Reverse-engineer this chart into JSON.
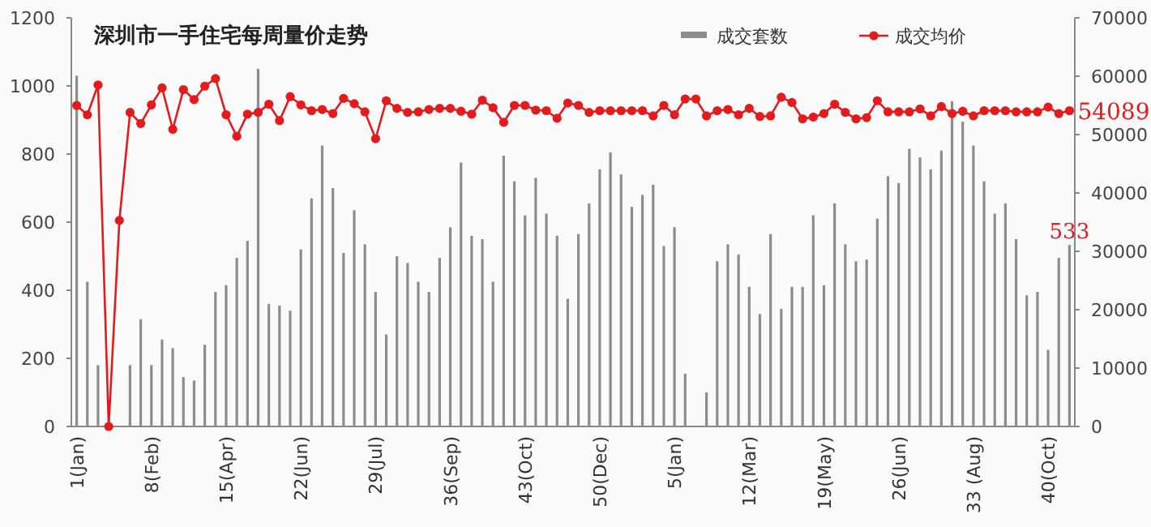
{
  "chart_data": {
    "type": "bar",
    "title": "深圳市一手住宅每周量价走势",
    "categories": [
      "1(Jan)",
      null,
      null,
      null,
      null,
      null,
      null,
      "8(Feb)",
      null,
      null,
      null,
      null,
      null,
      null,
      "15(Apr)",
      null,
      null,
      null,
      null,
      null,
      null,
      "22(Jun)",
      null,
      null,
      null,
      null,
      null,
      null,
      "29(Jul)",
      null,
      null,
      null,
      null,
      null,
      null,
      "36(Sep)",
      null,
      null,
      null,
      null,
      null,
      null,
      "43(Oct)",
      null,
      null,
      null,
      null,
      null,
      null,
      "50(Dec)",
      null,
      null,
      null,
      null,
      null,
      null,
      "5(Jan)",
      null,
      null,
      null,
      null,
      null,
      null,
      "12(Mar)",
      null,
      null,
      null,
      null,
      null,
      null,
      "19(May)",
      null,
      null,
      null,
      null,
      null,
      null,
      "26(Jun)",
      null,
      null,
      null,
      null,
      null,
      null,
      "33 (Aug)",
      null,
      null,
      null,
      null,
      null,
      null,
      "40(Oct)",
      null,
      null
    ],
    "series": [
      {
        "name": "成交套数",
        "color": "#8c8c8c",
        "values": [
          1030,
          425,
          180,
          0,
          0,
          180,
          315,
          180,
          255,
          230,
          145,
          135,
          240,
          395,
          415,
          495,
          545,
          1050,
          360,
          355,
          340,
          520,
          670,
          825,
          700,
          510,
          635,
          535,
          395,
          270,
          500,
          480,
          425,
          395,
          495,
          585,
          775,
          560,
          550,
          425,
          795,
          720,
          620,
          730,
          625,
          560,
          375,
          565,
          655,
          755,
          805,
          740,
          645,
          680,
          710,
          530,
          585,
          155,
          0,
          100,
          485,
          535,
          505,
          410,
          330,
          565,
          345,
          410,
          410,
          620,
          415,
          655,
          535,
          485,
          490,
          610,
          735,
          715,
          815,
          790,
          755,
          810,
          955,
          895,
          825,
          720,
          625,
          655,
          550,
          385,
          395,
          225,
          495,
          533
        ],
        "value_labels": [
          null,
          null,
          null,
          null,
          null,
          null,
          null,
          null,
          null,
          null,
          null,
          null,
          null,
          null,
          null,
          null,
          null,
          null,
          null,
          null,
          null,
          null,
          null,
          null,
          null,
          null,
          null,
          null,
          null,
          null,
          null,
          null,
          null,
          null,
          null,
          null,
          null,
          null,
          null,
          null,
          null,
          null,
          null,
          null,
          null,
          null,
          null,
          null,
          null,
          null,
          null,
          null,
          null,
          null,
          null,
          null,
          null,
          null,
          null,
          null,
          null,
          null,
          null,
          null,
          null,
          null,
          null,
          null,
          null,
          null,
          null,
          null,
          null,
          null,
          null,
          null,
          null,
          null,
          null,
          null,
          null,
          null,
          null,
          null,
          null,
          null,
          null,
          null,
          null,
          null,
          null,
          null,
          null,
          "533"
        ]
      },
      {
        "name": "成交均价",
        "type": "line",
        "axis": "y2",
        "marker": "circle",
        "color": "#e41a1c",
        "values": [
          55000,
          53400,
          58500,
          0,
          35300,
          53800,
          51900,
          55100,
          58000,
          50900,
          57700,
          56000,
          58300,
          59600,
          53400,
          49700,
          53500,
          53800,
          55200,
          52400,
          56500,
          55100,
          54100,
          54300,
          53600,
          56200,
          55300,
          53900,
          49300,
          55800,
          54500,
          53800,
          53900,
          54300,
          54500,
          54500,
          54000,
          53500,
          55900,
          54600,
          52100,
          55000,
          55000,
          54200,
          54100,
          52800,
          55400,
          55000,
          53800,
          54100,
          54100,
          54100,
          54100,
          54100,
          53200,
          55000,
          53400,
          56100,
          56100,
          53200,
          54100,
          54300,
          53400,
          54500,
          53100,
          53200,
          56400,
          55500,
          52700,
          53000,
          53600,
          55200,
          53800,
          52700,
          52900,
          55800,
          53900,
          53900,
          53900,
          54400,
          53200,
          54800,
          53600,
          54000,
          53200,
          54100,
          54100,
          54100,
          53900,
          53900,
          53900,
          54700,
          53600,
          54089
        ],
        "value_labels": [
          null,
          null,
          null,
          null,
          null,
          null,
          null,
          null,
          null,
          null,
          null,
          null,
          null,
          null,
          null,
          null,
          null,
          null,
          null,
          null,
          null,
          null,
          null,
          null,
          null,
          null,
          null,
          null,
          null,
          null,
          null,
          null,
          null,
          null,
          null,
          null,
          null,
          null,
          null,
          null,
          null,
          null,
          null,
          null,
          null,
          null,
          null,
          null,
          null,
          null,
          null,
          null,
          null,
          null,
          null,
          null,
          null,
          null,
          null,
          null,
          null,
          null,
          null,
          null,
          null,
          null,
          null,
          null,
          null,
          null,
          null,
          null,
          null,
          null,
          null,
          null,
          null,
          null,
          null,
          null,
          null,
          null,
          null,
          null,
          null,
          null,
          null,
          null,
          null,
          null,
          null,
          null,
          null,
          "54089"
        ]
      }
    ],
    "ylim": [
      0,
      1200
    ],
    "yticks": [
      0,
      200,
      400,
      600,
      800,
      1000,
      1200
    ],
    "y2lim": [
      0,
      70000
    ],
    "y2ticks": [
      0,
      10000,
      20000,
      30000,
      40000,
      50000,
      60000,
      70000
    ],
    "legend": "top right",
    "grid": false
  }
}
